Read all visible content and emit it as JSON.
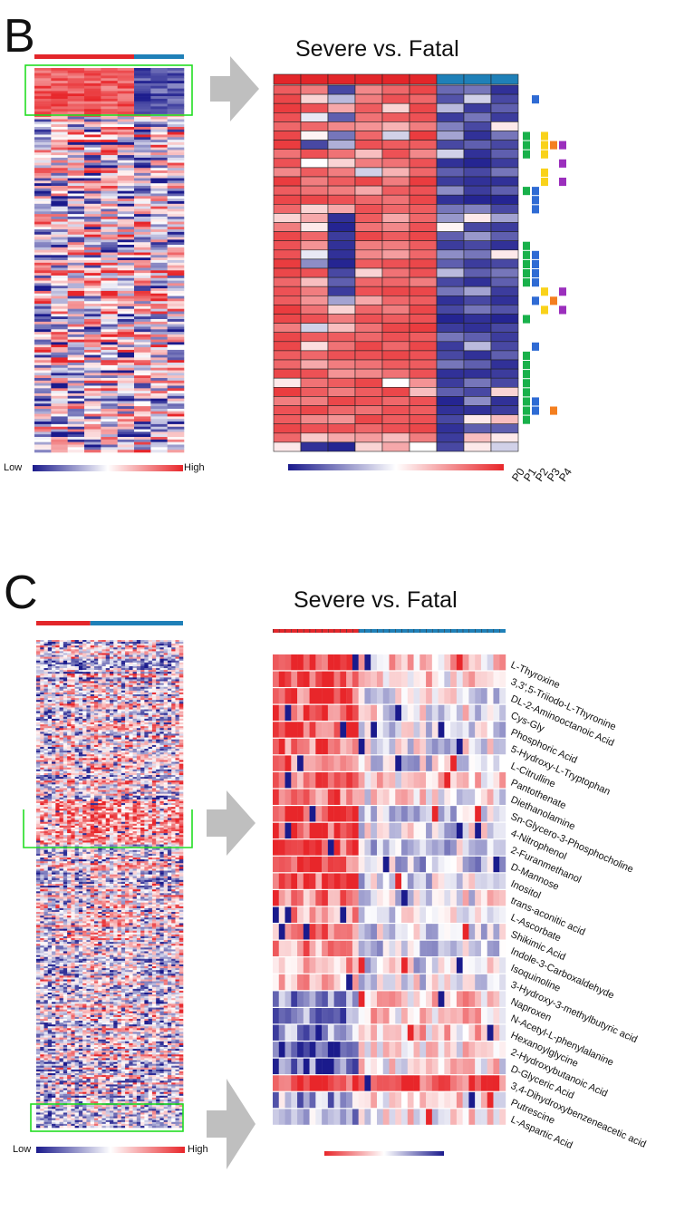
{
  "panels": [
    {
      "letter": "B",
      "zoom_title": "Severe vs. Fatal",
      "scale_low": "Low",
      "scale_high": "High",
      "groups": [
        {
          "name": "Severe",
          "color": "#e3262a",
          "samples": 6
        },
        {
          "name": "Fatal",
          "color": "#1f80b8",
          "samples": 3
        }
      ],
      "pathway_labels": [
        "P0",
        "P1",
        "P2",
        "P3",
        "P4"
      ],
      "pathway_colors": [
        "#19b14b",
        "#2f6bd4",
        "#f9d21a",
        "#f47f20",
        "#9b2fbd"
      ]
    },
    {
      "letter": "C",
      "zoom_title": "Severe vs. Fatal",
      "scale_low": "Low",
      "scale_high": "High",
      "groups": [
        {
          "name": "Severe",
          "color": "#e3262a",
          "samples": 14
        },
        {
          "name": "Fatal",
          "color": "#1f80b8",
          "samples": 24
        }
      ],
      "metabolites": [
        "L-Thyroxine",
        "3,3',5-Triiodo-L-Thyronine",
        "DL-2-Aminooctanoic Acid",
        "Cys-Gly",
        "Phosphoric Acid",
        "5-Hydroxy-L-Tryptophan",
        "L-Citrulline",
        "Pantothenate",
        "Diethanolamine",
        "Sn-Glycero-3-Phosphocholine",
        "4-Nitrophenol",
        "2-Furanmethanol",
        "D-Mannose",
        "Inositol",
        "trans-aconitic acid",
        "L-Ascorbate",
        "Shikimic Acid",
        "Indole-3-Carboxaldehyde",
        "Isoquinoline",
        "3-Hydroxy-3-methylbutyric acid",
        "Naproxen",
        "N-Acetyl-L-phenylalanine",
        "Hexanoylglycine",
        "2-Hydroxybutanoic Acid",
        "D-Glyceric Acid",
        "3,4-Dihydroxybenzeneacetic acid",
        "Putrescine",
        "L-Aspartic Acid"
      ]
    }
  ],
  "colors": {
    "low": "#1a1a8c",
    "mid": "#ffffff",
    "high": "#e8262a",
    "highlight": "#22dd22",
    "arrow": "#bfbfbf"
  },
  "chart_data": [
    {
      "type": "heatmap",
      "title": "Severe vs. Fatal",
      "panel": "B",
      "rows": 40,
      "columns": 9,
      "column_groups": [
        {
          "name": "Severe",
          "count": 6
        },
        {
          "name": "Fatal",
          "count": 3
        }
      ],
      "value_range": [
        "Low",
        "High"
      ],
      "pathway_columns": [
        "P0",
        "P1",
        "P2",
        "P3",
        "P4"
      ],
      "values": [
        [
          0.75,
          0.6,
          -0.8,
          0.55,
          0.7,
          0.85,
          -0.65,
          -0.6,
          -0.9
        ],
        [
          0.85,
          0.2,
          -0.3,
          0.6,
          0.8,
          0.7,
          -0.75,
          -0.2,
          -0.8
        ],
        [
          0.9,
          0.8,
          0.4,
          0.75,
          0.2,
          0.85,
          -0.3,
          -0.85,
          -0.7
        ],
        [
          0.8,
          -0.1,
          -0.7,
          0.65,
          0.75,
          0.8,
          -0.85,
          -0.6,
          -0.85
        ],
        [
          0.7,
          0.7,
          0.55,
          0.5,
          0.35,
          0.6,
          -0.55,
          -0.8,
          0.1
        ],
        [
          0.85,
          0.05,
          -0.6,
          0.7,
          -0.2,
          0.9,
          -0.4,
          -0.9,
          -0.6
        ],
        [
          0.9,
          -0.8,
          -0.35,
          0.8,
          0.75,
          0.75,
          -0.8,
          -0.7,
          -0.8
        ],
        [
          0.65,
          0.8,
          0.65,
          0.3,
          0.8,
          0.55,
          -0.2,
          -0.9,
          -0.7
        ],
        [
          0.8,
          0.0,
          0.2,
          0.6,
          0.65,
          0.8,
          -0.9,
          -0.95,
          -0.85
        ],
        [
          0.55,
          0.75,
          0.6,
          -0.2,
          0.35,
          0.7,
          -0.7,
          -0.8,
          -0.6
        ],
        [
          0.9,
          0.6,
          0.75,
          0.85,
          0.6,
          0.9,
          -0.85,
          -0.9,
          -0.9
        ],
        [
          0.75,
          0.65,
          0.6,
          0.4,
          0.75,
          0.8,
          -0.5,
          -0.85,
          -0.7
        ],
        [
          0.85,
          0.85,
          0.8,
          0.7,
          0.65,
          0.85,
          -0.9,
          -0.95,
          -0.95
        ],
        [
          0.7,
          0.2,
          0.4,
          0.8,
          0.7,
          0.75,
          -0.6,
          -0.55,
          -0.8
        ],
        [
          0.2,
          0.4,
          -0.9,
          0.75,
          0.4,
          0.7,
          -0.45,
          0.1,
          -0.4
        ],
        [
          0.6,
          0.1,
          -0.95,
          0.65,
          0.55,
          0.8,
          0.05,
          -0.8,
          -0.85
        ],
        [
          0.85,
          0.7,
          -0.85,
          0.85,
          0.75,
          0.85,
          -0.7,
          -0.45,
          -0.7
        ],
        [
          0.8,
          0.5,
          -0.9,
          0.6,
          0.6,
          0.75,
          -0.85,
          -0.8,
          -0.9
        ],
        [
          0.8,
          -0.1,
          -0.9,
          0.55,
          0.45,
          0.7,
          -0.5,
          -0.6,
          0.1
        ],
        [
          0.9,
          -0.5,
          -0.95,
          0.75,
          0.8,
          0.85,
          -0.7,
          -0.85,
          -0.8
        ],
        [
          0.85,
          0.8,
          -0.8,
          0.2,
          0.65,
          0.8,
          -0.3,
          -0.7,
          -0.6
        ],
        [
          0.7,
          0.3,
          -0.7,
          0.7,
          0.7,
          0.6,
          -0.8,
          -0.9,
          -0.7
        ],
        [
          0.8,
          0.6,
          -0.85,
          0.8,
          0.85,
          0.85,
          -0.6,
          -0.4,
          -0.85
        ],
        [
          0.75,
          0.5,
          -0.4,
          0.4,
          0.7,
          0.75,
          -0.9,
          -0.8,
          -0.9
        ],
        [
          0.9,
          0.65,
          0.2,
          0.7,
          0.6,
          0.85,
          -0.8,
          -0.6,
          -0.75
        ],
        [
          0.85,
          0.8,
          0.6,
          0.8,
          0.75,
          0.8,
          -0.95,
          -0.9,
          -0.95
        ],
        [
          0.6,
          -0.2,
          0.3,
          0.65,
          0.85,
          0.9,
          -0.85,
          -0.9,
          -0.8
        ],
        [
          0.85,
          0.75,
          0.75,
          0.7,
          0.8,
          0.75,
          -0.6,
          -0.7,
          -0.85
        ],
        [
          0.85,
          0.15,
          0.65,
          0.85,
          0.7,
          0.85,
          -0.85,
          -0.3,
          -0.8
        ],
        [
          0.75,
          0.7,
          0.8,
          0.8,
          0.85,
          0.8,
          -0.8,
          -0.9,
          -0.7
        ],
        [
          0.7,
          0.4,
          0.6,
          0.65,
          0.75,
          0.75,
          -0.6,
          -0.7,
          -0.9
        ],
        [
          0.85,
          0.8,
          0.5,
          0.55,
          0.65,
          0.8,
          -0.9,
          -0.9,
          -0.85
        ],
        [
          0.1,
          0.65,
          0.75,
          0.85,
          0.0,
          0.5,
          -0.85,
          -0.6,
          -0.8
        ],
        [
          0.9,
          0.75,
          0.6,
          0.75,
          0.85,
          0.3,
          -0.7,
          -0.8,
          0.2
        ],
        [
          0.6,
          0.6,
          0.85,
          0.8,
          0.7,
          0.8,
          -0.95,
          -0.5,
          -0.9
        ],
        [
          0.8,
          0.85,
          0.7,
          0.65,
          0.8,
          0.75,
          -0.9,
          -0.9,
          -0.85
        ],
        [
          0.75,
          0.55,
          0.5,
          0.85,
          0.75,
          0.8,
          -0.8,
          0.1,
          0.3
        ],
        [
          0.85,
          0.8,
          0.8,
          0.7,
          0.8,
          0.85,
          -0.9,
          -0.7,
          -0.7
        ],
        [
          0.7,
          0.25,
          0.4,
          0.45,
          0.3,
          0.6,
          -0.85,
          0.3,
          0.1
        ],
        [
          0.1,
          -0.9,
          -0.95,
          0.2,
          0.4,
          0.0,
          -0.8,
          0.1,
          -0.2
        ]
      ],
      "pathways": {
        "P0": [
          5,
          6,
          7,
          11,
          17,
          18,
          19,
          20,
          21,
          25,
          29,
          30,
          31,
          32,
          33,
          34,
          35,
          36
        ],
        "P1": [
          1,
          11,
          12,
          13,
          18,
          19,
          20,
          21,
          23,
          28,
          34,
          35
        ],
        "P2": [
          5,
          6,
          7,
          9,
          10,
          22,
          24
        ],
        "P3": [
          6,
          23,
          35
        ],
        "P4": [
          6,
          8,
          10,
          22,
          24
        ]
      }
    },
    {
      "type": "heatmap",
      "title": "Severe vs. Fatal",
      "panel": "C",
      "rows": 28,
      "columns": 38,
      "column_groups": [
        {
          "name": "Severe",
          "count": 14
        },
        {
          "name": "Fatal",
          "count": 24
        }
      ],
      "value_range": [
        "Low",
        "High"
      ],
      "row_labels": "panels.1.metabolites",
      "row_profiles": {
        "severe_level": [
          0.9,
          0.85,
          0.75,
          0.8,
          0.8,
          0.7,
          0.7,
          0.65,
          0.7,
          0.85,
          0.85,
          0.8,
          0.8,
          0.75,
          0.55,
          0.55,
          0.55,
          0.5,
          0.45,
          0.4,
          -0.4,
          -0.45,
          -0.45,
          -0.6,
          -0.65,
          0.9,
          -0.35,
          -0.35
        ],
        "fatal_level": [
          0.2,
          0.15,
          -0.1,
          0.0,
          -0.05,
          -0.05,
          -0.1,
          0.1,
          0.05,
          -0.15,
          -0.1,
          -0.15,
          -0.2,
          -0.15,
          0.0,
          -0.05,
          -0.1,
          -0.2,
          -0.1,
          -0.05,
          0.25,
          0.2,
          0.2,
          0.15,
          0.1,
          0.75,
          0.1,
          0.05
        ]
      }
    }
  ]
}
